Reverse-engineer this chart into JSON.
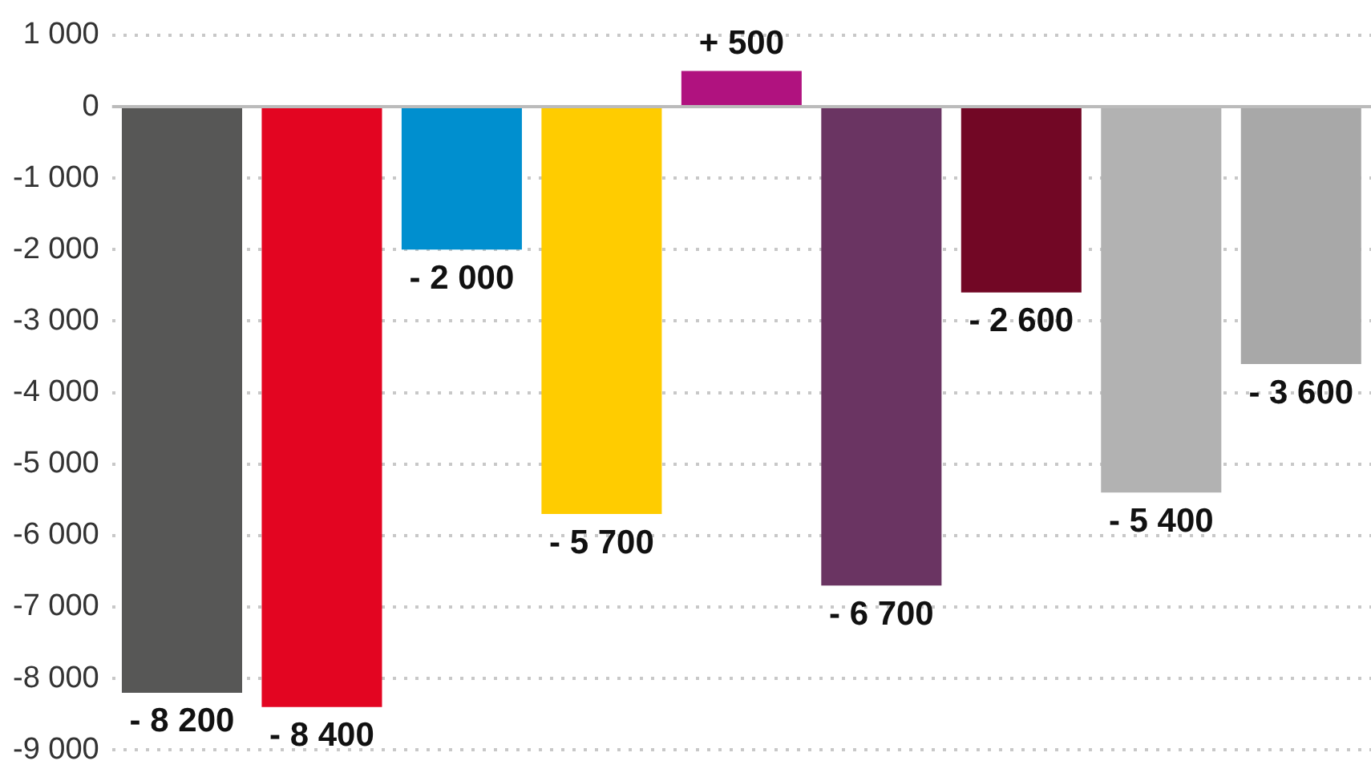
{
  "chart_data": {
    "type": "bar",
    "categories": [
      null,
      null,
      null,
      null,
      null,
      null,
      null,
      null,
      null
    ],
    "values": [
      -8200,
      -8400,
      -2000,
      -5700,
      500,
      -6700,
      -2600,
      -5400,
      -3600
    ],
    "colors": [
      "#575756",
      "#e30521",
      "#008fcf",
      "#ffcc00",
      "#b0127f",
      "#6a3462",
      "#720725",
      "#b2b2b2",
      "#a8a8a8"
    ],
    "value_labels": [
      "- 8 200",
      "- 8 400",
      "- 2 000",
      "- 5 700",
      "+ 500",
      "- 6 700",
      "- 2 600",
      "- 5 400",
      "- 3 600"
    ],
    "ylim": [
      -9000,
      1000
    ],
    "yticks": [
      {
        "value": 1000,
        "label": "1 000"
      },
      0,
      {
        "value": -1000,
        "label": "-1 000"
      },
      {
        "value": -2000,
        "label": "-2 000"
      },
      {
        "value": -3000,
        "label": "-3 000"
      },
      {
        "value": -4000,
        "label": "-4 000"
      },
      {
        "value": -5000,
        "label": "-5 000"
      },
      {
        "value": -6000,
        "label": "-6 000"
      },
      {
        "value": -7000,
        "label": "-7 000"
      },
      {
        "value": -8000,
        "label": "-8 000"
      },
      {
        "value": -9000,
        "label": "-9 000"
      }
    ],
    "grid": "y",
    "legend": false
  }
}
